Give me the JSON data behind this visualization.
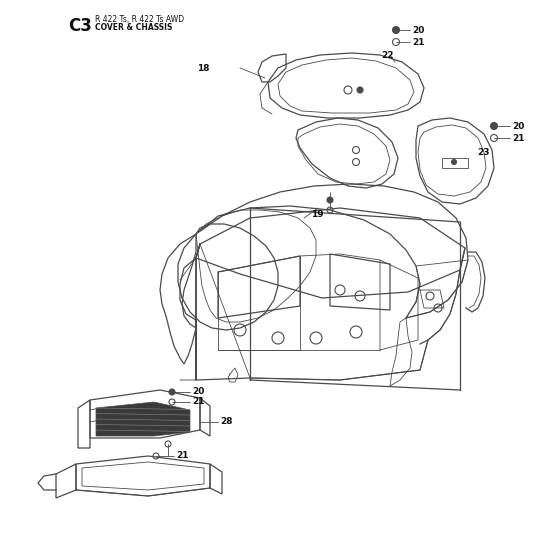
{
  "title_code": "C3",
  "title_main": "R 422 Ts, R 422 Ts AWD",
  "title_sub": "COVER & CHASSIS",
  "bg_color": "#ffffff",
  "line_color": "#4a4a4a",
  "label_color": "#111111",
  "figsize": [
    5.6,
    5.6
  ],
  "dpi": 100
}
